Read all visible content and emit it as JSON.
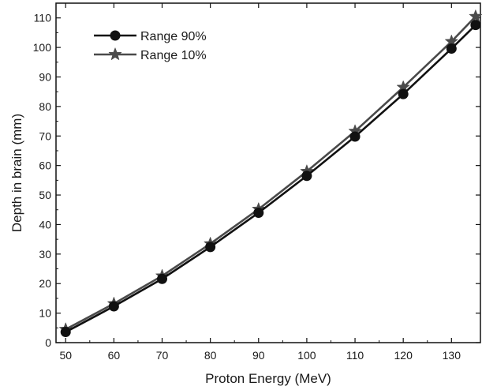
{
  "chart_data": {
    "type": "line",
    "xlabel": "Proton Energy (MeV)",
    "ylabel": "Depth in brain (mm)",
    "xlim": [
      48,
      136
    ],
    "ylim": [
      0,
      115
    ],
    "xticks": [
      50,
      60,
      70,
      80,
      90,
      100,
      110,
      120,
      130
    ],
    "yticks": [
      0,
      10,
      20,
      30,
      40,
      50,
      60,
      70,
      80,
      90,
      100,
      110
    ],
    "grid": false,
    "legend_position": "top-left",
    "x": [
      50,
      60,
      70,
      80,
      90,
      100,
      110,
      120,
      130,
      135
    ],
    "series": [
      {
        "name": "Range 90%",
        "marker": "circle",
        "color": "#111111",
        "values": [
          3.6,
          12.3,
          21.6,
          32.4,
          44.0,
          56.5,
          69.8,
          84.2,
          99.6,
          107.6
        ]
      },
      {
        "name": "Range 10%",
        "marker": "star",
        "color": "#4a4a4a",
        "values": [
          4.5,
          13.2,
          22.6,
          33.5,
          45.2,
          58.0,
          71.6,
          86.5,
          102.0,
          110.5
        ]
      }
    ]
  }
}
